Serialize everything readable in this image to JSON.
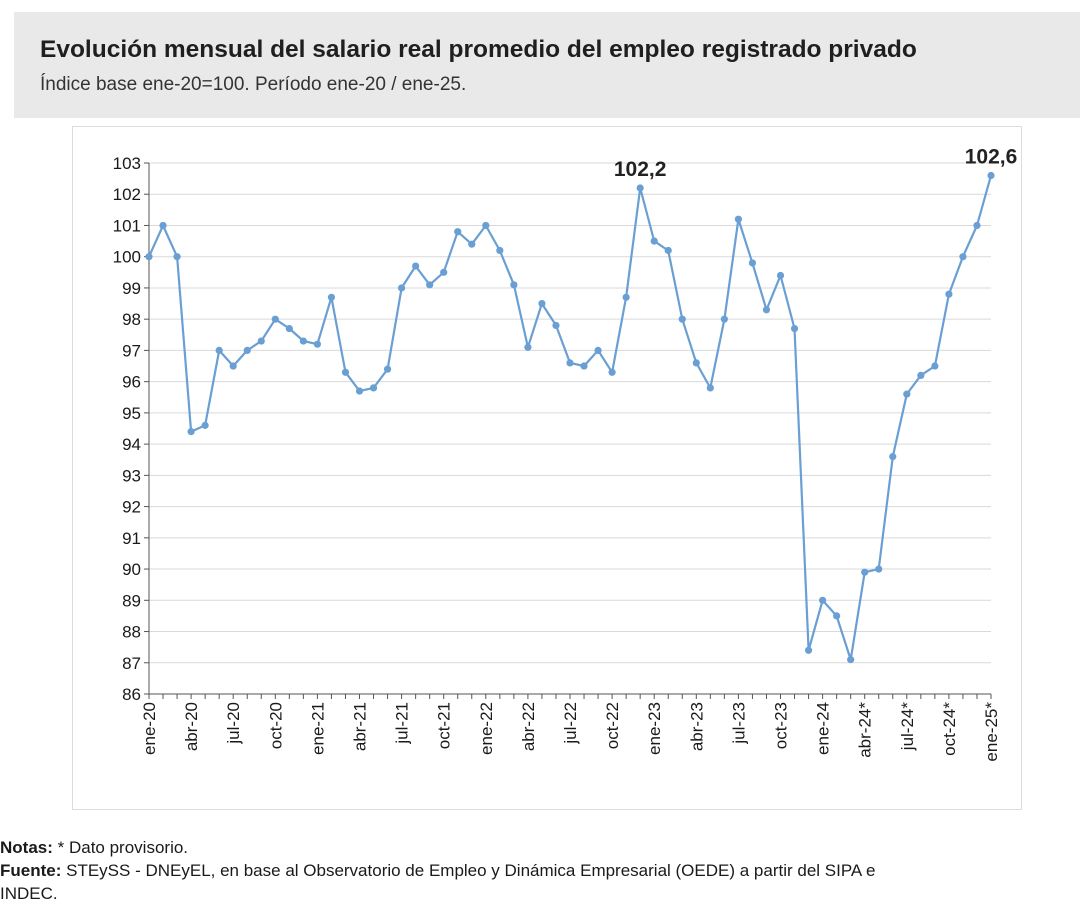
{
  "header": {
    "title": "Evolución mensual del salario real promedio del empleo registrado privado",
    "subtitle": "Índice base ene-20=100. Período ene-20 / ene-25."
  },
  "notes": {
    "notes_label": "Notas:",
    "notes_text": " * Dato provisorio.",
    "source_label": "Fuente:",
    "source_text": " STEySS - DNEyEL, en base al Observatorio de Empleo y Dinámica Empresarial (OEDE) a partir del SIPA e",
    "source_text_2": "INDEC."
  },
  "chart_data": {
    "type": "line",
    "title": "",
    "xlabel": "",
    "ylabel": "",
    "ylim": [
      86,
      103
    ],
    "yticks": [
      86,
      87,
      88,
      89,
      90,
      91,
      92,
      93,
      94,
      95,
      96,
      97,
      98,
      99,
      100,
      101,
      102,
      103
    ],
    "grid": "horizontal",
    "line_color": "#6a9fd4",
    "x": [
      "ene-20",
      "feb-20",
      "mar-20",
      "abr-20",
      "may-20",
      "jun-20",
      "jul-20",
      "ago-20",
      "sep-20",
      "oct-20",
      "nov-20",
      "dic-20",
      "ene-21",
      "feb-21",
      "mar-21",
      "abr-21",
      "may-21",
      "jun-21",
      "jul-21",
      "ago-21",
      "sep-21",
      "oct-21",
      "nov-21",
      "dic-21",
      "ene-22",
      "feb-22",
      "mar-22",
      "abr-22",
      "may-22",
      "jun-22",
      "jul-22",
      "ago-22",
      "sep-22",
      "oct-22",
      "nov-22",
      "dic-22",
      "ene-23",
      "feb-23",
      "mar-23",
      "abr-23",
      "may-23",
      "jun-23",
      "jul-23",
      "ago-23",
      "sep-23",
      "oct-23",
      "nov-23",
      "dic-23",
      "ene-24",
      "feb-24",
      "mar-24",
      "abr-24*",
      "may-24*",
      "jun-24*",
      "jul-24*",
      "ago-24*",
      "sep-24*",
      "oct-24*",
      "nov-24*",
      "dic-24*",
      "ene-25*"
    ],
    "xtick_labels": [
      "ene-20",
      "abr-20",
      "jul-20",
      "oct-20",
      "ene-21",
      "abr-21",
      "jul-21",
      "oct-21",
      "ene-22",
      "abr-22",
      "jul-22",
      "oct-22",
      "ene-23",
      "abr-23",
      "jul-23",
      "oct-23",
      "ene-24",
      "abr-24*",
      "jul-24*",
      "oct-24*",
      "ene-25*"
    ],
    "values": [
      100.0,
      101.0,
      100.0,
      94.4,
      94.6,
      97.0,
      96.5,
      97.0,
      97.3,
      98.0,
      97.7,
      97.3,
      97.2,
      98.7,
      96.3,
      95.7,
      95.8,
      96.4,
      99.0,
      99.7,
      99.1,
      99.5,
      100.8,
      100.4,
      101.0,
      100.2,
      99.1,
      97.1,
      98.5,
      97.8,
      96.6,
      96.5,
      97.0,
      96.3,
      98.7,
      102.2,
      100.5,
      100.2,
      98.0,
      96.6,
      95.8,
      98.0,
      101.2,
      99.8,
      98.3,
      99.4,
      97.7,
      87.4,
      89.0,
      88.5,
      87.1,
      89.9,
      90.0,
      93.6,
      95.6,
      96.2,
      96.5,
      98.8,
      100.0,
      101.0,
      102.6
    ],
    "annotations": [
      {
        "label": "102,2",
        "index": 35
      },
      {
        "label": "102,6",
        "index": 60
      }
    ]
  }
}
